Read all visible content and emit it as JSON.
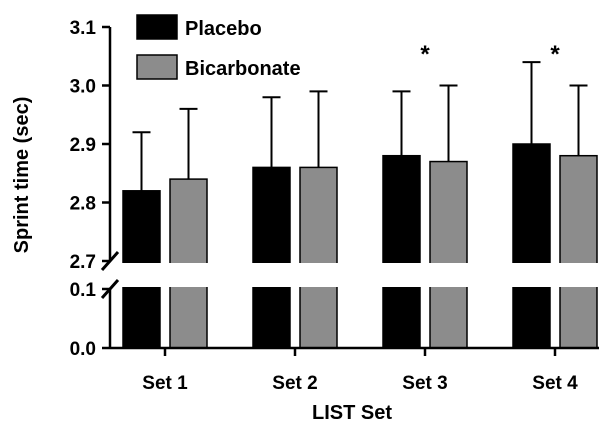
{
  "chart_data": {
    "type": "bar",
    "title": "",
    "xlabel": "LIST Set",
    "ylabel": "Sprint time (sec)",
    "categories": [
      "Set 1",
      "Set 2",
      "Set 3",
      "Set 4"
    ],
    "axis_break": true,
    "ylim_lower_segment": [
      0.0,
      0.1
    ],
    "ylim_upper_segment": [
      2.7,
      3.1
    ],
    "yticks_lower": [
      "0.0",
      "0.1"
    ],
    "yticks_upper": [
      "2.7",
      "2.8",
      "2.9",
      "3.0",
      "3.1"
    ],
    "legend_position": "top-left",
    "series": [
      {
        "name": "Placebo",
        "color": "#000000",
        "values": [
          2.82,
          2.86,
          2.88,
          2.9
        ],
        "error_upper": [
          0.1,
          0.12,
          0.11,
          0.14
        ]
      },
      {
        "name": "Bicarbonate",
        "color": "#8c8c8c",
        "values": [
          2.84,
          2.86,
          2.87,
          2.88
        ],
        "error_upper": [
          0.12,
          0.13,
          0.13,
          0.12
        ]
      }
    ],
    "annotations": [
      {
        "category": "Set 3",
        "text": "*"
      },
      {
        "category": "Set 4",
        "text": "*"
      }
    ]
  }
}
